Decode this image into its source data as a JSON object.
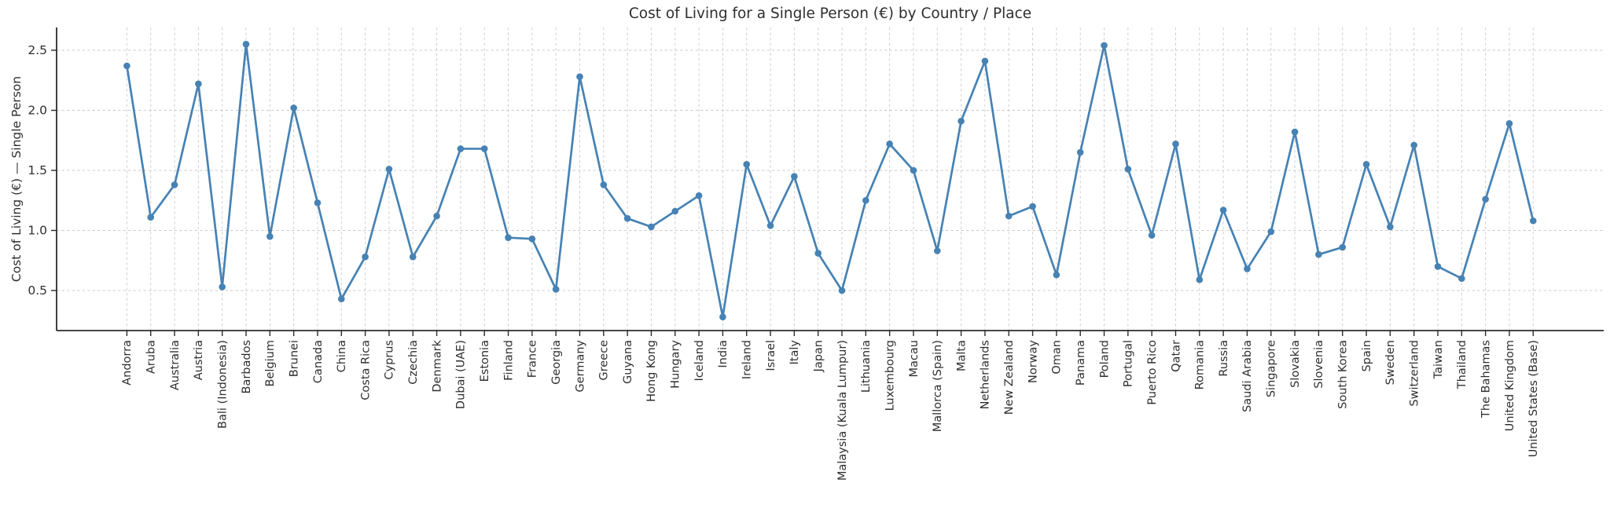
{
  "chart_data": {
    "type": "line",
    "title": "Cost of Living for a Single Person (€) by Country / Place",
    "ylabel": "Cost of Living (€) — Single Person",
    "xlabel": "",
    "legend": false,
    "grid": true,
    "grid_style": "dashed",
    "line_color": "#4682B4",
    "marker": "circle",
    "text_color": "#2e2e2e",
    "spine_color": "#2b2b2b",
    "grid_color": "#cccccc",
    "yticks": [
      0.5,
      1.0,
      1.5,
      2.0,
      2.5
    ],
    "ylim": [
      0.17,
      2.69
    ],
    "categories": [
      "Andorra",
      "Aruba",
      "Australia",
      "Austria",
      "Bali (Indonesia)",
      "Barbados",
      "Belgium",
      "Brunei",
      "Canada",
      "China",
      "Costa Rica",
      "Cyprus",
      "Czechia",
      "Denmark",
      "Dubai (UAE)",
      "Estonia",
      "Finland",
      "France",
      "Georgia",
      "Germany",
      "Greece",
      "Guyana",
      "Hong Kong",
      "Hungary",
      "Iceland",
      "India",
      "Ireland",
      "Israel",
      "Italy",
      "Japan",
      "Malaysia (Kuala Lumpur)",
      "Lithuania",
      "Luxembourg",
      "Macau",
      "Mallorca (Spain)",
      "Malta",
      "Netherlands",
      "New Zealand",
      "Norway",
      "Oman",
      "Panama",
      "Poland",
      "Portugal",
      "Puerto Rico",
      "Qatar",
      "Romania",
      "Russia",
      "Saudi Arabia",
      "Singapore",
      "Slovakia",
      "Slovenia",
      "South Korea",
      "Spain",
      "Sweden",
      "Switzerland",
      "Taiwan",
      "Thailand",
      "The Bahamas",
      "United Kingdom",
      "United States (Base)"
    ],
    "values": [
      2.37,
      1.11,
      1.38,
      2.22,
      0.53,
      2.55,
      0.95,
      2.02,
      1.23,
      0.43,
      0.78,
      1.51,
      0.78,
      1.12,
      1.68,
      1.68,
      0.94,
      0.93,
      0.51,
      2.28,
      1.38,
      1.1,
      1.03,
      1.16,
      1.29,
      0.28,
      1.55,
      1.04,
      1.45,
      0.81,
      0.5,
      1.25,
      1.72,
      1.5,
      0.83,
      1.91,
      2.41,
      1.12,
      1.2,
      0.63,
      1.65,
      2.54,
      1.51,
      0.96,
      1.72,
      0.59,
      1.17,
      0.68,
      0.99,
      1.82,
      0.8,
      0.86,
      1.55,
      1.03,
      1.71,
      0.7,
      0.6,
      1.26,
      1.89,
      1.08
    ]
  }
}
